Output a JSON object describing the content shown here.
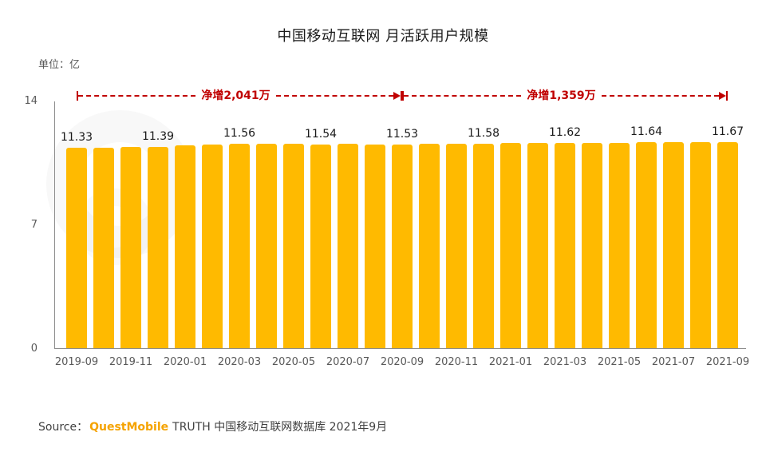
{
  "chart_data": {
    "type": "bar",
    "title": "中国移动互联网 月活跃用户规模",
    "unit_label": "单位：亿",
    "xlabel": "",
    "ylabel": "",
    "ylim": [
      0,
      14
    ],
    "yticks": [
      14,
      7,
      0
    ],
    "grid": false,
    "legend": "none",
    "x_ticks_every": 2,
    "categories": [
      "2019-09",
      "2019-10",
      "2019-11",
      "2019-12",
      "2020-01",
      "2020-02",
      "2020-03",
      "2020-04",
      "2020-05",
      "2020-06",
      "2020-07",
      "2020-08",
      "2020-09",
      "2020-10",
      "2020-11",
      "2020-12",
      "2021-01",
      "2021-02",
      "2021-03",
      "2021-04",
      "2021-05",
      "2021-06",
      "2021-07",
      "2021-08",
      "2021-09"
    ],
    "values": [
      11.33,
      11.35,
      11.37,
      11.39,
      11.46,
      11.52,
      11.56,
      11.55,
      11.57,
      11.54,
      11.55,
      11.54,
      11.53,
      11.55,
      11.56,
      11.58,
      11.6,
      11.61,
      11.62,
      11.62,
      11.63,
      11.64,
      11.65,
      11.66,
      11.67
    ],
    "data_labels": [
      "11.33",
      "",
      "",
      "11.39",
      "",
      "",
      "11.56",
      "",
      "",
      "11.54",
      "",
      "",
      "11.53",
      "",
      "",
      "11.58",
      "",
      "",
      "11.62",
      "",
      "",
      "11.64",
      "",
      "",
      "11.67"
    ],
    "annotations": [
      {
        "text": "净增2,041万",
        "from": "2019-09",
        "to": "2020-09"
      },
      {
        "text": "净增1,359万",
        "from": "2020-09",
        "to": "2021-09"
      }
    ],
    "colors": {
      "bar": "#FFBA00",
      "annotation": "#C00000",
      "axis": "#8C8C8C",
      "tick_text": "#595959",
      "data_label_text": "#1A1A1A",
      "brand_orange": "#F5A300"
    }
  },
  "source": {
    "prefix": "Source：",
    "brand": "QuestMobile",
    "suffix": "TRUTH 中国移动互联网数据库 2021年9月"
  }
}
